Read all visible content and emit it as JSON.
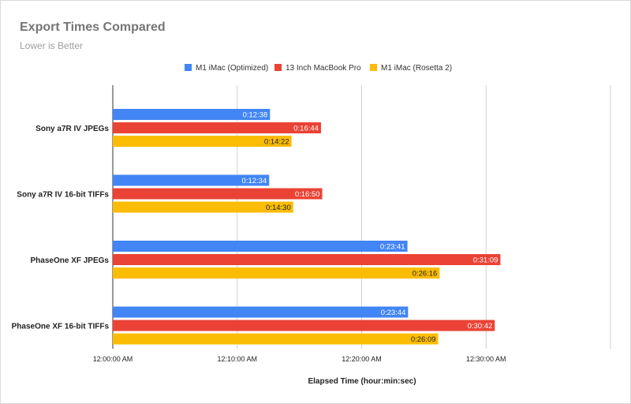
{
  "chart_data": {
    "type": "bar",
    "orientation": "horizontal",
    "title": "Export Times Compared",
    "subtitle": "Lower is Better",
    "xlabel": "Elapsed Time (hour:min:sec)",
    "ylabel": "",
    "xlim_seconds": [
      0,
      2400
    ],
    "x_ticks": [
      {
        "value": 0,
        "label": "12:00:00 AM"
      },
      {
        "value": 600,
        "label": "12:10:00 AM"
      },
      {
        "value": 1200,
        "label": "12:20:00 AM"
      },
      {
        "value": 1800,
        "label": "12:30:00 AM"
      }
    ],
    "grid": true,
    "legend_position": "top",
    "categories": [
      "Sony a7R IV JPEGs",
      "Sony a7R IV 16-bit TIFFs",
      "PhaseOne XF JPEGs",
      "PhaseOne XF 16-bit TIFFs"
    ],
    "series": [
      {
        "name": "M1 iMac (Optimized)",
        "color": "#4285f4",
        "label_color": "#ffffff",
        "values_seconds": [
          758,
          754,
          1421,
          1424
        ],
        "labels": [
          "0:12:38",
          "0:12:34",
          "0:23:41",
          "0:23:44"
        ]
      },
      {
        "name": "13 Inch MacBook Pro",
        "color": "#ea4335",
        "label_color": "#ffffff",
        "values_seconds": [
          1004,
          1010,
          1869,
          1842
        ],
        "labels": [
          "0:16:44",
          "0:16:50",
          "0:31:09",
          "0:30:42"
        ]
      },
      {
        "name": "M1 iMac (Rosetta 2)",
        "color": "#fbbc04",
        "label_color": "#222222",
        "values_seconds": [
          862,
          870,
          1576,
          1569
        ],
        "labels": [
          "0:14:22",
          "0:14:30",
          "0:26:16",
          "0:26:09"
        ]
      }
    ]
  }
}
